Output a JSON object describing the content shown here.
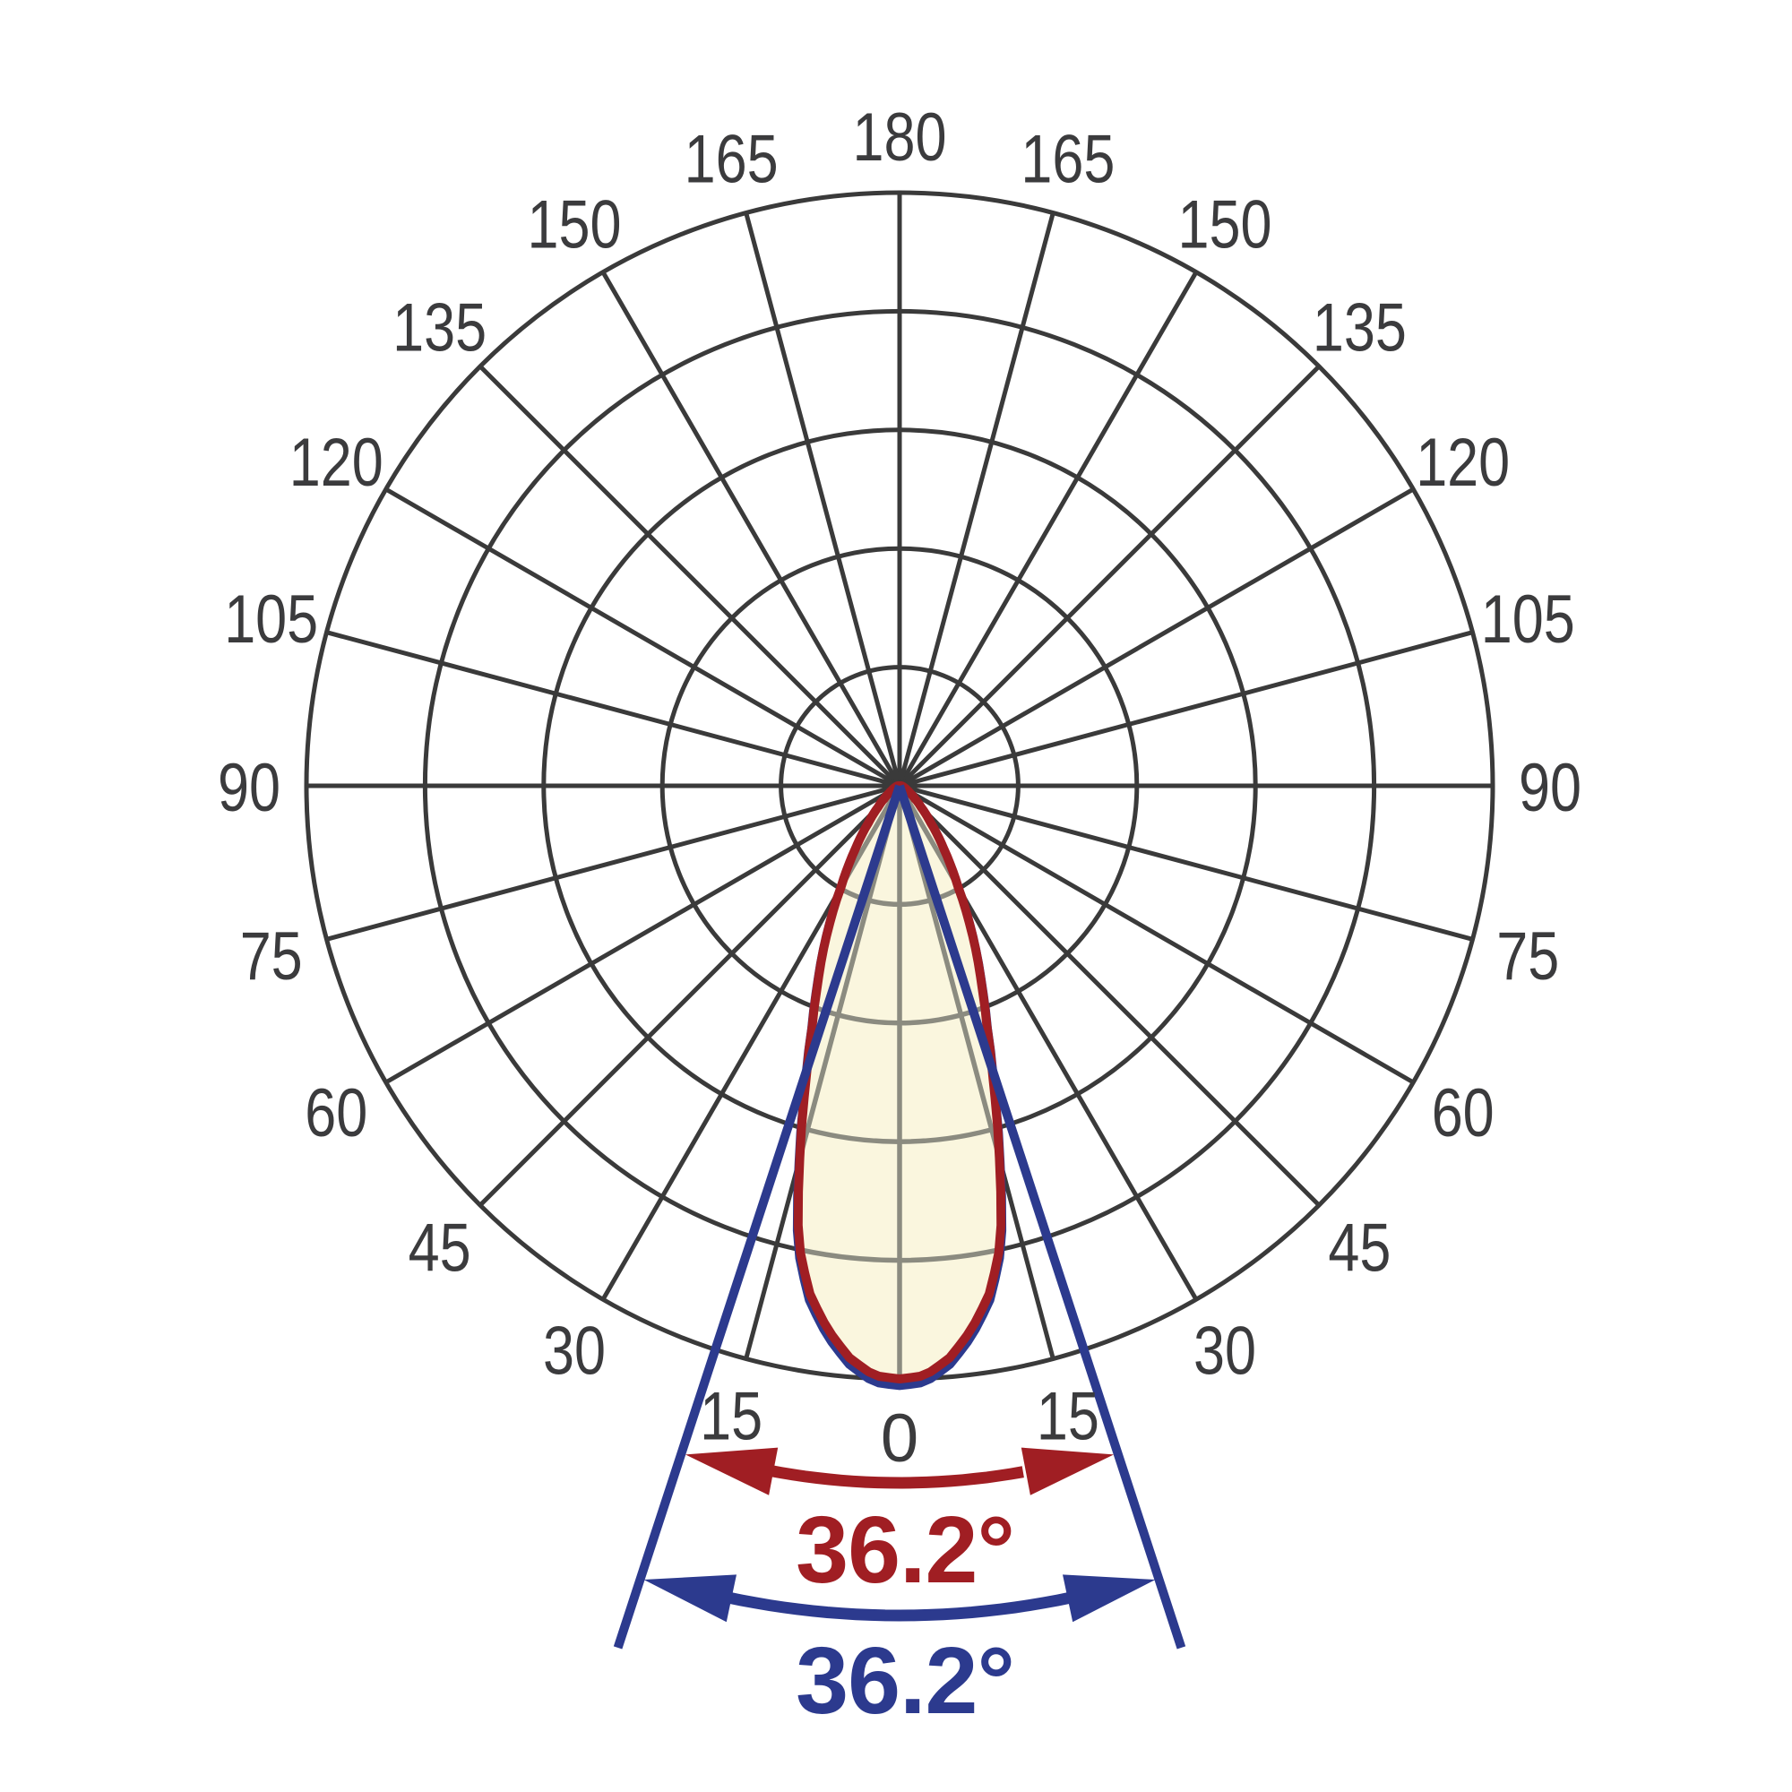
{
  "chart_data": {
    "type": "polar_photometric",
    "title": "",
    "description": "Luminous intensity distribution curve (polar diagram) with beam angle annotations",
    "angle_step_deg": 15,
    "rings": 5,
    "angle_axis": {
      "top": "180",
      "bottom": "0",
      "sides": [
        "15",
        "30",
        "45",
        "60",
        "75",
        "90",
        "105",
        "120",
        "135",
        "150",
        "165"
      ]
    },
    "beam": {
      "c0_beam_angle_deg": 36.2,
      "c90_beam_angle_deg": 36.2,
      "half_angle_deg": 18.1,
      "distribution": {
        "angles_deg": [
          0,
          2.5,
          5,
          7.5,
          10,
          12.5,
          15,
          17.5,
          20,
          22.5,
          25,
          27.5,
          30,
          32.5,
          35,
          40,
          45,
          50,
          55,
          60,
          70,
          80,
          90
        ],
        "relative_intensity": [
          1.0,
          0.995,
          0.968,
          0.925,
          0.87,
          0.788,
          0.65,
          0.525,
          0.43,
          0.36,
          0.303,
          0.248,
          0.198,
          0.162,
          0.13,
          0.082,
          0.052,
          0.034,
          0.022,
          0.015,
          0.008,
          0.005,
          0.003
        ]
      }
    },
    "annotations": {
      "c0_label": "36.2°",
      "c90_label": "36.2°"
    },
    "colors": {
      "background": "#ffffff",
      "grid": "#3a3a3a",
      "grid_in_lobe": "#8b8b80",
      "label_text": "#3b3b3d",
      "lobe_fill": "#faf6de",
      "c0_curve": "#a01e23",
      "c90_curve": "#2c3a8e"
    },
    "legend_position": "none",
    "grid_on": true
  }
}
